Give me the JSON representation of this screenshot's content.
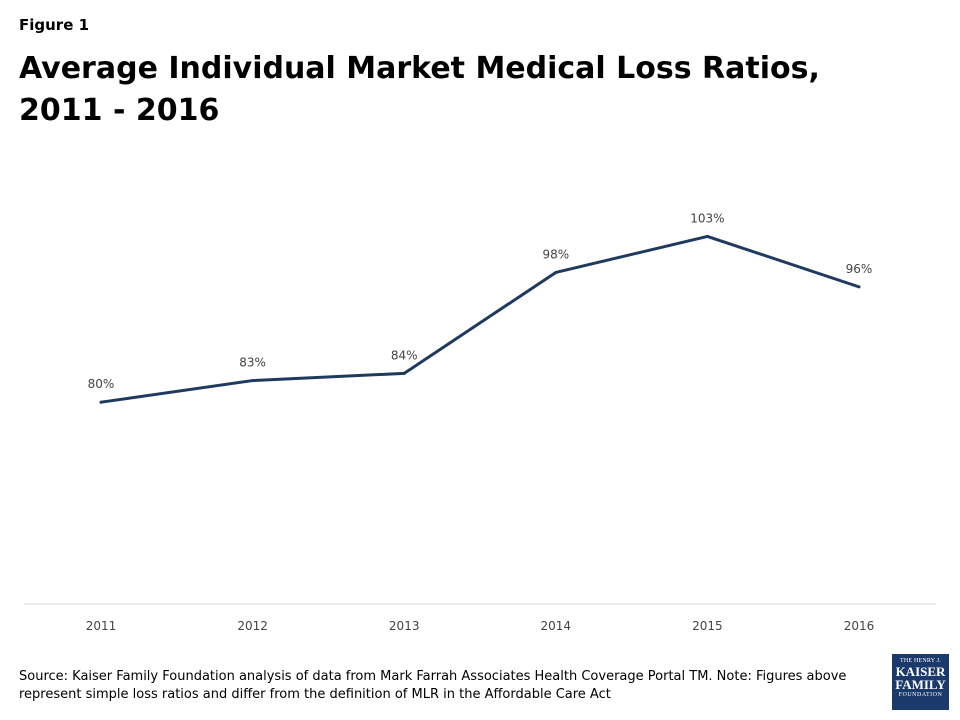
{
  "figure_label": "Figure 1",
  "title": "Average Individual Market Medical Loss Ratios, 2011 - 2016",
  "source_note": "Source: Kaiser Family Foundation  analysis of data from Mark Farrah Associates Health Coverage Portal TM. Note: Figures above represent simple loss ratios and differ from the definition of MLR in the Affordable Care Act",
  "logo": {
    "line1": "THE HENRY J.",
    "line2": "KAISER",
    "line3": "FAMILY",
    "line4": "FOUNDATION"
  },
  "chart_data": {
    "type": "line",
    "title": "Average Individual Market Medical Loss Ratios, 2011 - 2016",
    "xlabel": "",
    "ylabel": "",
    "categories": [
      "2011",
      "2012",
      "2013",
      "2014",
      "2015",
      "2016"
    ],
    "series": [
      {
        "values": [
          80,
          83,
          84,
          98,
          103,
          96
        ],
        "labels": [
          "80%",
          "83%",
          "84%",
          "98%",
          "103%",
          "96%"
        ],
        "color": "#1f3a5f"
      }
    ],
    "ylim": [
      52,
      105
    ],
    "grid": false,
    "legend": "none"
  }
}
